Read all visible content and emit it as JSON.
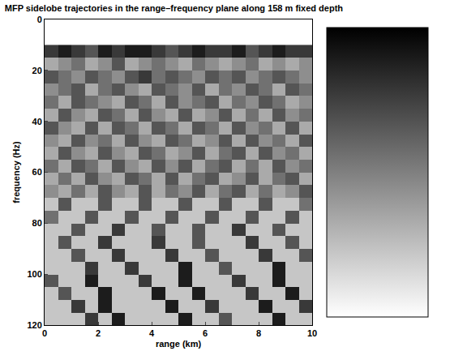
{
  "chart_data": {
    "type": "heatmap",
    "title": "MFP sidelobe trajectories in the range–frequency plane along 158 m fixed depth",
    "x_label": "range (km)",
    "y_label": "frequency (Hz)",
    "x": [
      0.25,
      0.75,
      1.25,
      1.75,
      2.25,
      2.75,
      3.25,
      3.75,
      4.25,
      4.75,
      5.25,
      5.75,
      6.25,
      6.75,
      7.25,
      7.75,
      8.25,
      8.75,
      9.25,
      9.75
    ],
    "y": [
      12.5,
      17.5,
      22.5,
      27.5,
      32.5,
      37.5,
      42.5,
      47.5,
      52.5,
      57.5,
      62.5,
      67.5,
      72.5,
      77.5,
      82.5,
      87.5,
      92.5,
      97.5,
      102.5,
      107.5,
      112.5,
      117.5
    ],
    "z": [
      [
        7,
        8,
        7,
        6,
        8,
        7,
        8,
        8,
        7,
        6,
        7,
        8,
        7,
        7,
        8,
        6,
        7,
        8,
        7,
        7
      ],
      [
        3,
        4,
        5,
        3,
        4,
        6,
        3,
        4,
        5,
        4,
        3,
        5,
        4,
        3,
        4,
        5,
        3,
        4,
        3,
        4
      ],
      [
        6,
        5,
        4,
        6,
        5,
        4,
        6,
        7,
        5,
        6,
        5,
        4,
        6,
        5,
        6,
        4,
        5,
        6,
        5,
        4
      ],
      [
        4,
        5,
        6,
        3,
        5,
        6,
        4,
        3,
        6,
        5,
        4,
        6,
        3,
        5,
        4,
        6,
        5,
        3,
        6,
        5
      ],
      [
        5,
        3,
        6,
        5,
        4,
        3,
        6,
        5,
        3,
        6,
        4,
        5,
        6,
        3,
        5,
        4,
        6,
        5,
        3,
        4
      ],
      [
        3,
        6,
        4,
        3,
        6,
        5,
        3,
        6,
        4,
        3,
        6,
        3,
        4,
        6,
        3,
        5,
        3,
        6,
        4,
        5
      ],
      [
        6,
        4,
        3,
        6,
        3,
        6,
        5,
        3,
        6,
        5,
        3,
        6,
        5,
        3,
        6,
        4,
        5,
        3,
        6,
        3
      ],
      [
        4,
        3,
        6,
        4,
        5,
        3,
        6,
        4,
        3,
        6,
        5,
        3,
        4,
        6,
        3,
        6,
        4,
        5,
        3,
        6
      ],
      [
        3,
        6,
        4,
        3,
        6,
        4,
        3,
        6,
        5,
        3,
        4,
        6,
        3,
        5,
        6,
        3,
        6,
        4,
        5,
        3
      ],
      [
        5,
        3,
        6,
        5,
        3,
        6,
        4,
        3,
        6,
        4,
        6,
        3,
        5,
        6,
        3,
        5,
        3,
        6,
        4,
        5
      ],
      [
        3,
        5,
        3,
        6,
        4,
        3,
        6,
        5,
        3,
        6,
        3,
        5,
        6,
        3,
        4,
        6,
        3,
        5,
        6,
        3
      ],
      [
        4,
        3,
        5,
        3,
        6,
        4,
        3,
        6,
        3,
        5,
        4,
        6,
        3,
        5,
        6,
        3,
        5,
        3,
        4,
        6
      ],
      [
        2,
        6,
        2,
        2,
        6,
        2,
        2,
        6,
        2,
        2,
        6,
        2,
        2,
        6,
        2,
        2,
        6,
        2,
        2,
        5
      ],
      [
        5,
        2,
        2,
        6,
        2,
        2,
        6,
        2,
        2,
        6,
        2,
        2,
        6,
        2,
        2,
        6,
        2,
        2,
        6,
        2
      ],
      [
        2,
        2,
        6,
        2,
        2,
        7,
        2,
        2,
        6,
        2,
        2,
        6,
        2,
        2,
        7,
        2,
        2,
        6,
        2,
        2
      ],
      [
        2,
        6,
        2,
        2,
        7,
        2,
        2,
        2,
        7,
        2,
        2,
        6,
        2,
        2,
        2,
        7,
        2,
        2,
        6,
        2
      ],
      [
        2,
        2,
        6,
        2,
        2,
        7,
        2,
        2,
        2,
        7,
        2,
        2,
        6,
        2,
        2,
        2,
        7,
        2,
        2,
        6
      ],
      [
        2,
        2,
        2,
        7,
        2,
        2,
        7,
        2,
        2,
        2,
        8,
        2,
        2,
        6,
        2,
        2,
        2,
        8,
        2,
        2
      ],
      [
        6,
        2,
        2,
        8,
        2,
        2,
        2,
        7,
        2,
        2,
        8,
        2,
        2,
        2,
        7,
        2,
        2,
        8,
        2,
        2
      ],
      [
        2,
        6,
        2,
        2,
        8,
        2,
        2,
        2,
        8,
        2,
        2,
        8,
        2,
        2,
        2,
        7,
        2,
        2,
        8,
        2
      ],
      [
        2,
        2,
        7,
        2,
        8,
        2,
        2,
        2,
        2,
        8,
        2,
        2,
        7,
        2,
        2,
        2,
        8,
        2,
        2,
        7
      ],
      [
        2,
        2,
        2,
        7,
        2,
        8,
        2,
        2,
        2,
        2,
        8,
        2,
        2,
        6,
        2,
        2,
        2,
        8,
        2,
        2
      ]
    ],
    "xlim": [
      0,
      10
    ],
    "xticks": [
      0,
      2,
      4,
      6,
      8,
      10
    ],
    "ylim": [
      120,
      0
    ],
    "yticks": [
      0,
      20,
      40,
      60,
      80,
      100,
      120
    ],
    "colorbar_range": [
      0,
      9
    ],
    "colorbar_ticks": [],
    "color": "gray"
  }
}
